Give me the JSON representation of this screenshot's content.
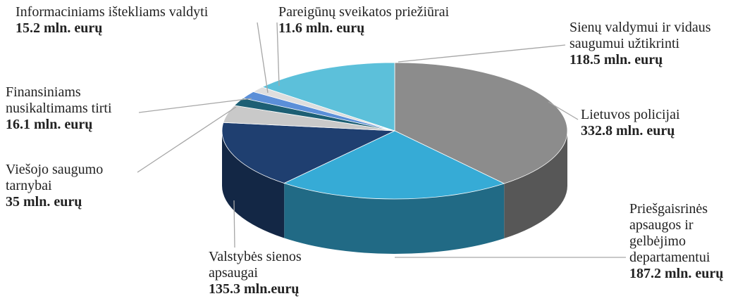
{
  "chart_data": {
    "type": "pie3d",
    "categories": [
      "Lietuvos policijai",
      "Priešgaisrinės apsaugos ir gelbėjimo departamentui",
      "Valstybės sienos apsaugai",
      "Viešojo saugumo tarnybai",
      "Finansiniams nusikaltimams tirti",
      "Informaciniams ištekliams valdyti",
      "Pareigūnų sveikatos priežiūrai",
      "Sienų valdymui ir vidaus saugumui užtikrinti"
    ],
    "values": [
      332.8,
      187.2,
      135.3,
      35,
      16.1,
      15.2,
      11.6,
      118.5
    ],
    "value_labels": [
      "332.8 mln. eurų",
      "187.2 mln. eurų",
      "135.3 mln.eurų",
      "35 mln. eurų",
      "16.1 mln. eurų",
      "15.2 mln. eurų",
      "11.6 mln. eurų",
      "118.5 mln. eurų"
    ],
    "colors": [
      "#8c8c8c",
      "#36abd6",
      "#1f3f70",
      "#c9c9c9",
      "#1d5f74",
      "#5b8fd8",
      "#dedede",
      "#5cc0da"
    ]
  }
}
